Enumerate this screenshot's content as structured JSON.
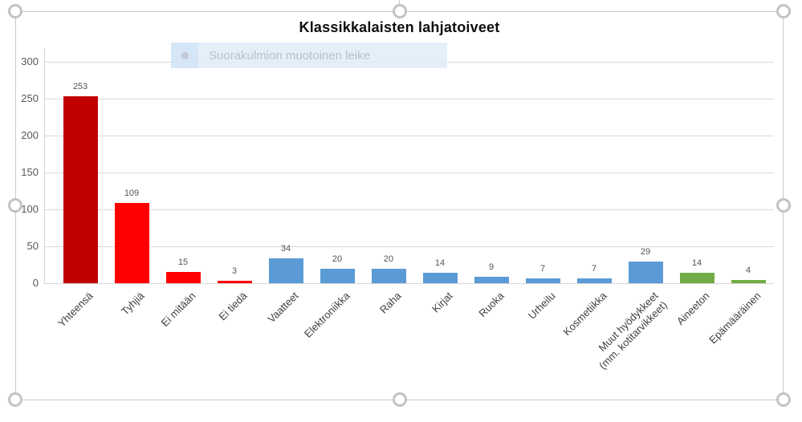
{
  "chart_data": {
    "type": "bar",
    "title": "Klassikkalaisten lahjatoiveet",
    "categories": [
      "Yhteensä",
      "Tyhjiä",
      "Ei mitään",
      "Ei tiedä",
      "Vaatteet",
      "Elektroniikka",
      "Raha",
      "Kirjat",
      "Ruoka",
      "Urheilu",
      "Kosmetiikka",
      "Muut hyödykkeet\n(mm. kotitarvikkeet)",
      "Aineeton",
      "Epämääräinen"
    ],
    "values": [
      253,
      109,
      15,
      3,
      34,
      20,
      20,
      14,
      9,
      7,
      7,
      29,
      14,
      4
    ],
    "bar_colors": [
      "#c00000",
      "#ff0000",
      "#ff0000",
      "#ff0000",
      "#5b9bd5",
      "#5b9bd5",
      "#5b9bd5",
      "#5b9bd5",
      "#5b9bd5",
      "#5b9bd5",
      "#5b9bd5",
      "#5b9bd5",
      "#70ad47",
      "#70ad47"
    ],
    "xlabel": "",
    "ylabel": "",
    "ylim": [
      0,
      300
    ],
    "yticks": [
      0,
      50,
      100,
      150,
      200,
      250,
      300
    ],
    "grid": true,
    "legend": "none",
    "data_labels": true,
    "xtick_rotation": 45
  },
  "overlay": {
    "label": "Suorakulmion muotoinen leike"
  },
  "selection": {
    "handles": [
      "top-left",
      "top-center",
      "top-right",
      "middle-left",
      "middle-right",
      "bottom-left",
      "bottom-center",
      "bottom-right"
    ]
  },
  "colors": {
    "bar_dark_red": "#c00000",
    "bar_red": "#ff0000",
    "bar_blue": "#5b9bd5",
    "bar_green": "#70ad47",
    "gridline": "#d9d9d9",
    "axis_text": "#595959",
    "selection_handle": "#c3c3c3",
    "overlay_background": "#e0edf9",
    "overlay_text": "#b7c1cb"
  }
}
